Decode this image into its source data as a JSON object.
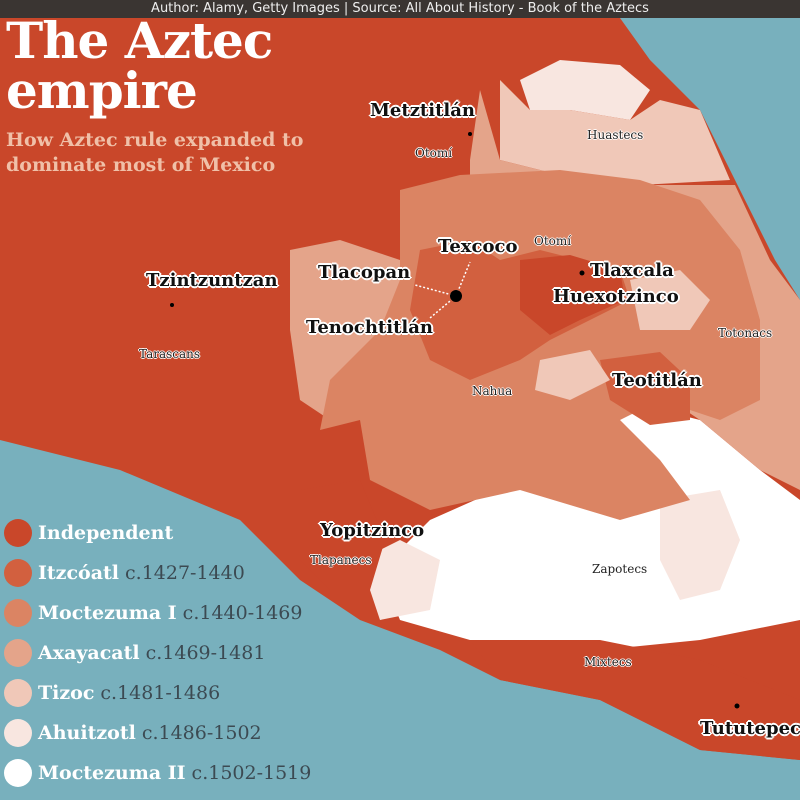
{
  "attribution": "Author: Alamy, Getty Images | Source: All About History - Book of the Aztecs",
  "title_line1": "The Aztec",
  "title_line2": "empire",
  "subtitle_line1": "How Aztec rule expanded to",
  "subtitle_line2": "dominate most of Mexico",
  "colors": {
    "sea": "#78b0bd",
    "independent": "#c9472a",
    "itzcoatl": "#d2603f",
    "moctezuma1": "#db8463",
    "axayacatl": "#e4a48a",
    "tizoc": "#f0c8b8",
    "ahuitzotl": "#f8e6e0",
    "moctezuma2": "#ffffff"
  },
  "legend": [
    {
      "name": "Independent",
      "dates": "",
      "color": "#c9472a"
    },
    {
      "name": "Itzcóatl",
      "dates": "c.1427-1440",
      "color": "#d2603f"
    },
    {
      "name": "Moctezuma I",
      "dates": "c.1440-1469",
      "color": "#db8463"
    },
    {
      "name": "Axayacatl",
      "dates": "c.1469-1481",
      "color": "#e4a48a"
    },
    {
      "name": "Tizoc",
      "dates": "c.1481-1486",
      "color": "#f0c8b8"
    },
    {
      "name": "Ahuitzotl",
      "dates": "c.1486-1502",
      "color": "#f8e6e0"
    },
    {
      "name": "Moctezuma II",
      "dates": "c.1502-1519",
      "color": "#ffffff"
    }
  ],
  "places": {
    "metztitlan": "Metztitlán",
    "otomi_north": "Otomí",
    "huastecs": "Huastecs",
    "texcoco": "Texcoco",
    "otomi_east": "Otomí",
    "tlacopan": "Tlacopan",
    "tlaxcala": "Tlaxcala",
    "huexotzinco": "Huexotzinco",
    "tzintzuntzan": "Tzintzuntzan",
    "tenochtitlan": "Tenochtitlán",
    "tarascans": "Tarascans",
    "totonacs": "Totonacs",
    "nahua": "Nahua",
    "teotitlan": "Teotitlán",
    "yopitzinco": "Yopitzinco",
    "tlapanecs": "Tlapanecs",
    "zapotecs": "Zapotecs",
    "mixtecs": "Mixtecs",
    "tututepec": "Tututepec"
  }
}
